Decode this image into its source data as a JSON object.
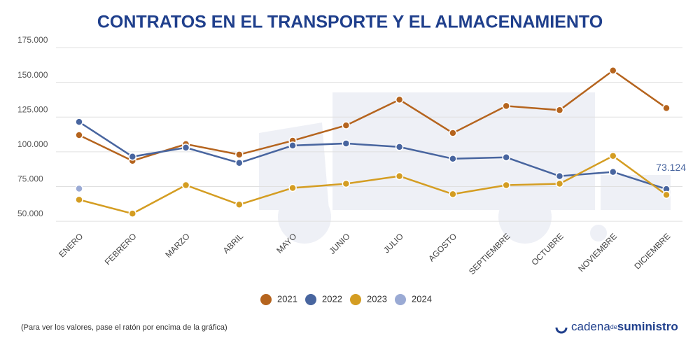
{
  "chart_data": {
    "type": "line",
    "title": "CONTRATOS EN EL TRANSPORTE Y EL ALMACENAMIENTO",
    "categories": [
      "ENERO",
      "FEBRERO",
      "MARZO",
      "ABRIL",
      "MAYO",
      "JUNIO",
      "JULIO",
      "AGOSTO",
      "SEPTIEMBRE",
      "OCTUBRE",
      "NOVIEMBRE",
      "DICIEMBRE"
    ],
    "series": [
      {
        "name": "2021",
        "color": "#b5641e",
        "values": [
          112000,
          93500,
          105500,
          98000,
          108000,
          119000,
          137500,
          113500,
          133000,
          130000,
          158500,
          131500
        ]
      },
      {
        "name": "2022",
        "color": "#48659f",
        "values": [
          121500,
          96500,
          103000,
          92000,
          104500,
          106000,
          103500,
          95000,
          96000,
          82500,
          85500,
          73124
        ],
        "value_labels": [
          null,
          null,
          null,
          null,
          null,
          null,
          null,
          null,
          null,
          null,
          null,
          "73.124"
        ]
      },
      {
        "name": "2023",
        "color": "#d49d22",
        "values": [
          65500,
          55500,
          76000,
          62000,
          74000,
          77000,
          82500,
          69500,
          76000,
          77000,
          97000,
          69000
        ]
      },
      {
        "name": "2024",
        "color": "#9aaad4",
        "values": [
          73500,
          null,
          null,
          null,
          null,
          null,
          null,
          null,
          null,
          null,
          null,
          null
        ]
      }
    ],
    "ylim": [
      45000,
      175000
    ],
    "yticks": [
      {
        "value": 50000,
        "label": "50.000"
      },
      {
        "value": 75000,
        "label": "75.000"
      },
      {
        "value": 100000,
        "label": "100.000"
      },
      {
        "value": 125000,
        "label": "125.000"
      },
      {
        "value": 150000,
        "label": "150.000"
      },
      {
        "value": 175000,
        "label": "175.000"
      }
    ],
    "grid": true,
    "legend": "bottom"
  },
  "footer": {
    "note": "(Para ver los valores, pase el ratón por encima de la gráfica)",
    "logo": [
      "cadena",
      "de",
      "suministro"
    ]
  }
}
